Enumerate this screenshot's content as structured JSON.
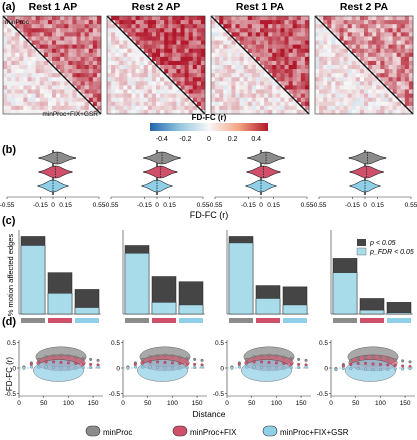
{
  "panels": {
    "a": "(a)",
    "b": "(b)",
    "c": "(c)",
    "d": "(d)"
  },
  "columns": [
    "Rest 1 AP",
    "Rest 2 AP",
    "Rest 1 PA",
    "Rest 2 PA"
  ],
  "matrix_labels": {
    "upper": "minProc",
    "lower": "minProc+FIX+GSR"
  },
  "colors": {
    "minProc": "#8c8c8c",
    "minProcFIX": "#d0506a",
    "minProcFIXGSR": "#8fd0e8",
    "positive": "#b2182b",
    "negative": "#2166ac",
    "dark_bar": "#454545"
  },
  "chart_data": [
    {
      "panel": "a",
      "type": "heatmap",
      "title_per_matrix": [
        "Rest 1 AP",
        "Rest 2 AP",
        "Rest 1 PA",
        "Rest 2 PA"
      ],
      "upper_triangle": "minProc",
      "lower_triangle": "minProc+FIX+GSR",
      "colorbar": {
        "label": "FD-FC (r)",
        "range": [
          -0.5,
          0.5
        ],
        "ticks": [
          "-0.4",
          "-0.2",
          "0",
          "0.2",
          "0.4"
        ],
        "colormap": "blue-white-red"
      },
      "upper_mean_intensity": [
        0.28,
        0.36,
        0.33,
        0.22
      ],
      "lower_mean_intensity": [
        0.06,
        0.05,
        0.05,
        0.04
      ]
    },
    {
      "panel": "b",
      "type": "violin",
      "xlabel": "FD-FC (r)",
      "xticks": [
        "-0.55",
        "-0.15",
        "0",
        "0.15",
        "0.55"
      ],
      "xlim": [
        -0.55,
        0.55
      ],
      "series": [
        "minProc",
        "minProc+FIX",
        "minProc+FIX+GSR"
      ],
      "medians": [
        [
          0.05,
          0.03,
          0.0
        ],
        [
          0.06,
          0.04,
          0.0
        ],
        [
          0.06,
          0.03,
          0.0
        ],
        [
          0.03,
          0.02,
          0.0
        ]
      ],
      "spread": [
        0.22,
        0.2,
        0.18
      ]
    },
    {
      "panel": "c",
      "type": "bar",
      "ylabel": "% motion affected edges",
      "ylim": [
        0,
        60
      ],
      "legend": [
        "p < 0.05",
        "p_FDR < 0.05"
      ],
      "groups": [
        "minProc",
        "minProc+FIX",
        "minProc+FIX+GSR"
      ],
      "p_lt_05": [
        [
          60,
          32,
          19
        ],
        [
          53,
          29,
          25
        ],
        [
          60,
          22,
          21
        ],
        [
          43,
          12,
          9
        ]
      ],
      "pfdr_lt_05": [
        [
          53,
          16,
          5
        ],
        [
          47,
          9,
          7
        ],
        [
          55,
          12,
          7
        ],
        [
          32,
          3,
          1
        ]
      ]
    },
    {
      "panel": "d",
      "type": "scatter",
      "xlabel": "Distance",
      "ylabel": "FD-FC (r)",
      "xlim": [
        0,
        170
      ],
      "ylim": [
        -0.55,
        0.55
      ],
      "xticks": [
        "0",
        "50",
        "100",
        "150"
      ],
      "yticks": [
        "-0.5",
        "0",
        "0.5"
      ],
      "series": [
        {
          "name": "minProc",
          "x": [
            10,
            25,
            40,
            55,
            70,
            85,
            100,
            115,
            130,
            145,
            160
          ],
          "y": [
            0.02,
            0.1,
            0.17,
            0.22,
            0.24,
            0.25,
            0.24,
            0.21,
            0.19,
            0.17,
            0.15
          ]
        },
        {
          "name": "minProc+FIX",
          "x": [
            10,
            25,
            40,
            55,
            70,
            85,
            100,
            115,
            130,
            145,
            160
          ],
          "y": [
            0.0,
            0.07,
            0.1,
            0.12,
            0.12,
            0.11,
            0.1,
            0.09,
            0.08,
            0.07,
            0.06
          ]
        },
        {
          "name": "minProc+FIX+GSR",
          "x": [
            10,
            25,
            40,
            55,
            70,
            85,
            100,
            115,
            130,
            145,
            160
          ],
          "y": [
            0.0,
            0.02,
            0.02,
            0.02,
            0.01,
            0.0,
            0.0,
            0.0,
            0.01,
            0.01,
            0.02
          ]
        }
      ]
    }
  ],
  "legend_bottom": [
    "minProc",
    "minProc+FIX",
    "minProc+FIX+GSR"
  ]
}
